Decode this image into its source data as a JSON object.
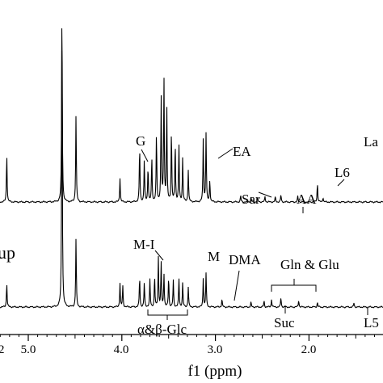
{
  "chart_data": {
    "type": "line",
    "xlabel": "f1 (ppm)",
    "x_reversed": true,
    "xlim": [
      5.42,
      1.35
    ],
    "xticks": [
      {
        "value": 5.0,
        "label": "5.0"
      },
      {
        "value": 4.0,
        "label": "4.0"
      },
      {
        "value": 3.0,
        "label": "3.0"
      },
      {
        "value": 2.0,
        "label": "2.0"
      }
    ],
    "xtick_partial": "2",
    "group_labels": [
      "up"
    ],
    "series": [
      {
        "peaks": [
          {
            "x": 5.23,
            "h": 60
          },
          {
            "x": 4.64,
            "h": 250
          },
          {
            "x": 4.49,
            "h": 108
          },
          {
            "x": 4.02,
            "h": 30
          },
          {
            "x": 3.81,
            "h": 70
          },
          {
            "x": 3.76,
            "h": 52
          },
          {
            "x": 3.72,
            "h": 45
          },
          {
            "x": 3.68,
            "h": 55
          },
          {
            "x": 3.63,
            "h": 85
          },
          {
            "x": 3.58,
            "h": 130
          },
          {
            "x": 3.55,
            "h": 155
          },
          {
            "x": 3.52,
            "h": 120
          },
          {
            "x": 3.47,
            "h": 90
          },
          {
            "x": 3.43,
            "h": 75
          },
          {
            "x": 3.39,
            "h": 70
          },
          {
            "x": 3.35,
            "h": 55
          },
          {
            "x": 3.29,
            "h": 40
          },
          {
            "x": 3.13,
            "h": 78
          },
          {
            "x": 3.1,
            "h": 85
          },
          {
            "x": 3.06,
            "h": 28
          },
          {
            "x": 2.73,
            "h": 8
          },
          {
            "x": 2.62,
            "h": 6
          },
          {
            "x": 2.55,
            "h": 5
          },
          {
            "x": 2.47,
            "h": 7
          },
          {
            "x": 2.36,
            "h": 6
          },
          {
            "x": 2.3,
            "h": 9
          },
          {
            "x": 2.12,
            "h": 7
          },
          {
            "x": 1.91,
            "h": 24
          },
          {
            "x": 1.85,
            "h": 6
          }
        ]
      },
      {
        "peaks": [
          {
            "x": 5.23,
            "h": 30
          },
          {
            "x": 4.64,
            "h": 370
          },
          {
            "x": 4.49,
            "h": 85
          },
          {
            "x": 4.02,
            "h": 30
          },
          {
            "x": 3.99,
            "h": 26
          },
          {
            "x": 3.81,
            "h": 38
          },
          {
            "x": 3.76,
            "h": 30
          },
          {
            "x": 3.7,
            "h": 34
          },
          {
            "x": 3.65,
            "h": 38
          },
          {
            "x": 3.61,
            "h": 62
          },
          {
            "x": 3.58,
            "h": 55
          },
          {
            "x": 3.55,
            "h": 42
          },
          {
            "x": 3.5,
            "h": 38
          },
          {
            "x": 3.45,
            "h": 33
          },
          {
            "x": 3.39,
            "h": 35
          },
          {
            "x": 3.35,
            "h": 30
          },
          {
            "x": 3.29,
            "h": 25
          },
          {
            "x": 3.13,
            "h": 36
          },
          {
            "x": 3.1,
            "h": 42
          },
          {
            "x": 2.93,
            "h": 10
          },
          {
            "x": 2.62,
            "h": 6
          },
          {
            "x": 2.48,
            "h": 8
          },
          {
            "x": 2.4,
            "h": 10
          },
          {
            "x": 2.3,
            "h": 12
          },
          {
            "x": 2.11,
            "h": 9
          },
          {
            "x": 1.91,
            "h": 6
          },
          {
            "x": 1.52,
            "h": 5
          }
        ]
      }
    ],
    "annotations": [
      {
        "text": "G",
        "x": 3.98,
        "series": 0,
        "pointer": [
          3.8,
          200
        ]
      },
      {
        "text": "EA",
        "x": 3.05,
        "series": 0,
        "pointer": [
          3.12,
          196
        ]
      },
      {
        "text": "La",
        "x": 1.45,
        "series": 0
      },
      {
        "text": "L6",
        "x": 1.84,
        "series": 0,
        "pointer": [
          1.91,
          228
        ]
      },
      {
        "text": "Sar",
        "x": 2.78,
        "series": 0,
        "pointer": [
          2.62,
          244
        ]
      },
      {
        "text": "AA",
        "x": 2.3,
        "series": 0,
        "pointer": [
          2.3,
          262
        ]
      },
      {
        "text": "M-I",
        "x": 3.73,
        "series": 1,
        "pointer": [
          3.61,
          320
        ]
      },
      {
        "text": "M",
        "x": 3.1,
        "series": 1
      },
      {
        "text": "DMA",
        "x": 2.85,
        "series": 1,
        "pointer": [
          2.93,
          370
        ]
      },
      {
        "text": "Gln & Glu",
        "x": 2.32,
        "series": 1
      },
      {
        "text": "Suc",
        "x": 2.41,
        "series": 1
      },
      {
        "text": "L5",
        "x": 1.5,
        "series": 1
      },
      {
        "text": "α&β-Glc",
        "x": 3.55,
        "series": 1
      }
    ]
  }
}
